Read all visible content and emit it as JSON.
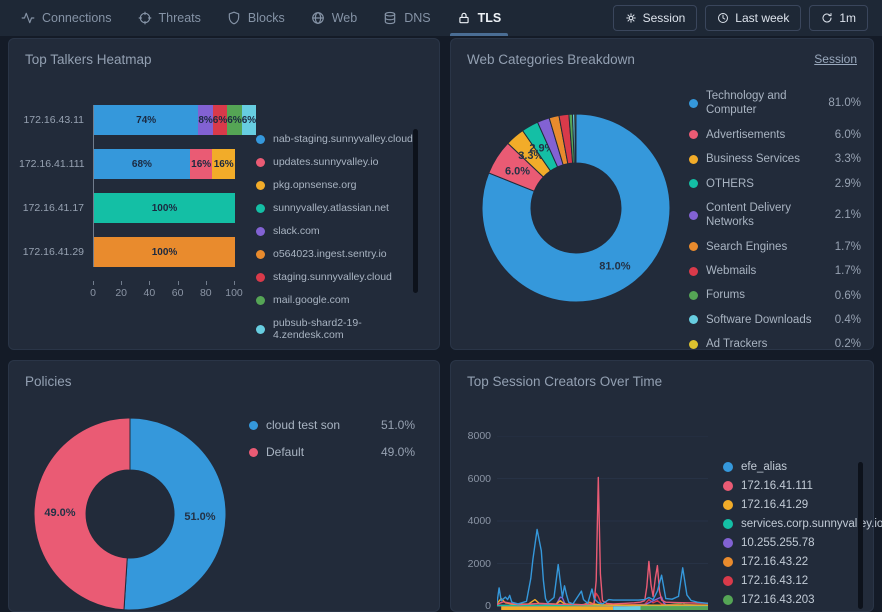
{
  "nav": {
    "tabs": [
      {
        "label": "Connections",
        "icon": "activity-icon"
      },
      {
        "label": "Threats",
        "icon": "crosshair-icon"
      },
      {
        "label": "Blocks",
        "icon": "shield-icon"
      },
      {
        "label": "Web",
        "icon": "globe-icon"
      },
      {
        "label": "DNS",
        "icon": "database-icon"
      },
      {
        "label": "TLS",
        "icon": "lock-icon"
      }
    ],
    "active_tab": "TLS",
    "controls": [
      {
        "label": "Session",
        "icon": "gear-icon"
      },
      {
        "label": "Last week",
        "icon": "clock-icon"
      },
      {
        "label": "1m",
        "icon": "refresh-icon"
      }
    ]
  },
  "panels": {
    "top_talkers": {
      "title": "Top Talkers Heatmap"
    },
    "web_categories": {
      "title": "Web Categories Breakdown",
      "link_label": "Session"
    },
    "policies": {
      "title": "Policies"
    },
    "session_creators": {
      "title": "Top Session Creators Over Time"
    }
  },
  "colors": {
    "page_bg": "#141b27",
    "panel_bg": "#222b3a",
    "accent_underline": "#4a6d94",
    "blue": "#3598db",
    "pink": "#ea5b74",
    "yellow": "#f2ac29",
    "teal": "#14bfa5",
    "purple": "#8262d3",
    "orange": "#e98b2d",
    "red": "#d93a4a",
    "green": "#55a555",
    "cyan": "#67cde0",
    "gold": "#dcc22f"
  },
  "chart_data": [
    {
      "id": "top_talkers",
      "type": "bar",
      "orientation": "horizontal",
      "stacked": true,
      "value_unit": "%",
      "categories": [
        "172.16.43.11",
        "172.16.41.111",
        "172.16.41.17",
        "172.16.41.29"
      ],
      "series": [
        {
          "name": "nab-staging.sunnyvalley.cloud",
          "color": "#3598db",
          "values": [
            74,
            68,
            0,
            0
          ]
        },
        {
          "name": "updates.sunnyvalley.io",
          "color": "#ea5b74",
          "values": [
            0,
            16,
            0,
            0
          ]
        },
        {
          "name": "pkg.opnsense.org",
          "color": "#f2ac29",
          "values": [
            0,
            16,
            0,
            0
          ]
        },
        {
          "name": "sunnyvalley.atlassian.net",
          "color": "#14bfa5",
          "values": [
            0,
            0,
            100,
            0
          ]
        },
        {
          "name": "slack.com",
          "color": "#8262d3",
          "values": [
            8,
            0,
            0,
            0
          ]
        },
        {
          "name": "o564023.ingest.sentry.io",
          "color": "#e98b2d",
          "values": [
            0,
            0,
            0,
            100
          ]
        },
        {
          "name": "staging.sunnyvalley.cloud",
          "color": "#d93a4a",
          "values": [
            6,
            0,
            0,
            0
          ]
        },
        {
          "name": "mail.google.com",
          "color": "#55a555",
          "values": [
            6,
            0,
            0,
            0
          ]
        },
        {
          "name": "pubsub-shard2-19-4.zendesk.com",
          "color": "#67cde0",
          "values": [
            6,
            0,
            0,
            0
          ]
        }
      ],
      "xticks": [
        0,
        20,
        40,
        60,
        80,
        100
      ],
      "xlim": [
        0,
        100
      ]
    },
    {
      "id": "web_categories",
      "type": "pie",
      "donut": true,
      "label_threshold": 2.5,
      "slices": [
        {
          "label": "Technology and Computer",
          "value": 81.0,
          "color": "#3598db"
        },
        {
          "label": "Advertisements",
          "value": 6.0,
          "color": "#ea5b74"
        },
        {
          "label": "Business Services",
          "value": 3.3,
          "color": "#f2ac29"
        },
        {
          "label": "OTHERS",
          "value": 2.9,
          "color": "#14bfa5"
        },
        {
          "label": "Content Delivery Networks",
          "value": 2.1,
          "color": "#8262d3"
        },
        {
          "label": "Search Engines",
          "value": 1.7,
          "color": "#e98b2d"
        },
        {
          "label": "Webmails",
          "value": 1.7,
          "color": "#d93a4a"
        },
        {
          "label": "Forums",
          "value": 0.6,
          "color": "#55a555"
        },
        {
          "label": "Software Downloads",
          "value": 0.4,
          "color": "#67cde0"
        },
        {
          "label": "Ad Trackers",
          "value": 0.2,
          "color": "#dcc22f"
        }
      ]
    },
    {
      "id": "policies",
      "type": "pie",
      "donut": true,
      "label_threshold": 0,
      "slices": [
        {
          "label": "cloud test son",
          "value": 51.0,
          "color": "#3598db"
        },
        {
          "label": "Default",
          "value": 49.0,
          "color": "#ea5b74"
        }
      ]
    },
    {
      "id": "session_creators",
      "type": "line",
      "ylim": [
        0,
        8000
      ],
      "yticks": [
        8000,
        6000,
        4000,
        2000,
        0
      ],
      "series": [
        {
          "name": "efe_alias",
          "color": "#3598db",
          "points": [
            [
              0,
              150
            ],
            [
              1,
              850
            ],
            [
              2,
              250
            ],
            [
              4,
              420
            ],
            [
              5,
              300
            ],
            [
              6,
              500
            ],
            [
              7,
              180
            ],
            [
              10,
              100
            ],
            [
              14,
              220
            ],
            [
              16,
              1300
            ],
            [
              17,
              2200
            ],
            [
              19,
              3600
            ],
            [
              21,
              2600
            ],
            [
              22,
              1200
            ],
            [
              23,
              350
            ],
            [
              24,
              150
            ],
            [
              27,
              400
            ],
            [
              29,
              1950
            ],
            [
              30,
              1150
            ],
            [
              31,
              420
            ],
            [
              32,
              950
            ],
            [
              33,
              520
            ],
            [
              34,
              180
            ],
            [
              36,
              100
            ],
            [
              40,
              700
            ],
            [
              41,
              300
            ],
            [
              43,
              120
            ],
            [
              45,
              800
            ],
            [
              46,
              350
            ],
            [
              48,
              150
            ],
            [
              50,
              100
            ],
            [
              53,
              300
            ],
            [
              55,
              280
            ],
            [
              58,
              280
            ],
            [
              61,
              280
            ],
            [
              64,
              280
            ],
            [
              67,
              280
            ],
            [
              70,
              300
            ],
            [
              72,
              400
            ],
            [
              74,
              300
            ],
            [
              76,
              700
            ],
            [
              78,
              1450
            ],
            [
              80,
              350
            ],
            [
              83,
              320
            ],
            [
              86,
              450
            ],
            [
              88,
              1800
            ],
            [
              90,
              520
            ],
            [
              92,
              260
            ],
            [
              95,
              180
            ],
            [
              100,
              120
            ]
          ]
        },
        {
          "name": "172.16.41.111",
          "color": "#ea5b74",
          "points": [
            [
              0,
              80
            ],
            [
              3,
              200
            ],
            [
              10,
              60
            ],
            [
              20,
              120
            ],
            [
              30,
              80
            ],
            [
              40,
              60
            ],
            [
              45,
              90
            ],
            [
              46,
              150
            ],
            [
              47,
              1200
            ],
            [
              48,
              6050
            ],
            [
              49,
              1500
            ],
            [
              50,
              250
            ],
            [
              52,
              120
            ],
            [
              55,
              100
            ],
            [
              60,
              120
            ],
            [
              65,
              150
            ],
            [
              68,
              180
            ],
            [
              70,
              250
            ],
            [
              71,
              900
            ],
            [
              72,
              2100
            ],
            [
              73,
              1000
            ],
            [
              74,
              450
            ],
            [
              75,
              1300
            ],
            [
              76,
              1900
            ],
            [
              77,
              700
            ],
            [
              78,
              280
            ],
            [
              80,
              180
            ],
            [
              85,
              160
            ],
            [
              90,
              150
            ],
            [
              95,
              140
            ],
            [
              100,
              130
            ]
          ]
        },
        {
          "name": "172.16.41.29",
          "color": "#f2ac29",
          "points": [
            [
              0,
              120
            ],
            [
              2,
              350
            ],
            [
              4,
              150
            ],
            [
              8,
              80
            ],
            [
              15,
              100
            ],
            [
              18,
              300
            ],
            [
              20,
              120
            ],
            [
              28,
              90
            ],
            [
              30,
              250
            ],
            [
              32,
              100
            ],
            [
              40,
              60
            ],
            [
              50,
              50
            ],
            [
              55,
              40
            ],
            [
              60,
              40
            ],
            [
              70,
              40
            ],
            [
              80,
              40
            ],
            [
              90,
              40
            ],
            [
              100,
              40
            ]
          ]
        },
        {
          "name": "services.corp.sunnyvalley.io",
          "color": "#14bfa5",
          "points": [
            [
              0,
              30
            ],
            [
              10,
              25
            ],
            [
              20,
              30
            ],
            [
              30,
              25
            ],
            [
              40,
              30
            ],
            [
              50,
              30
            ],
            [
              55,
              35
            ],
            [
              60,
              35
            ],
            [
              68,
              35
            ],
            [
              70,
              30
            ],
            [
              80,
              25
            ],
            [
              90,
              25
            ],
            [
              100,
              25
            ]
          ]
        },
        {
          "name": "10.255.255.78",
          "color": "#8262d3",
          "points": [
            [
              0,
              20
            ],
            [
              10,
              20
            ],
            [
              20,
              25
            ],
            [
              28,
              60
            ],
            [
              30,
              420
            ],
            [
              31,
              380
            ],
            [
              32,
              150
            ],
            [
              33,
              60
            ],
            [
              40,
              30
            ],
            [
              50,
              25
            ],
            [
              60,
              25
            ],
            [
              70,
              60
            ],
            [
              77,
              380
            ],
            [
              78,
              420
            ],
            [
              79,
              150
            ],
            [
              80,
              50
            ],
            [
              90,
              25
            ],
            [
              100,
              20
            ]
          ]
        },
        {
          "name": "172.16.43.22",
          "color": "#e98b2d",
          "points": [
            [
              0,
              25
            ],
            [
              10,
              20
            ],
            [
              20,
              25
            ],
            [
              30,
              30
            ],
            [
              40,
              25
            ],
            [
              44,
              180
            ],
            [
              45,
              120
            ],
            [
              50,
              30
            ],
            [
              60,
              25
            ],
            [
              70,
              30
            ],
            [
              80,
              25
            ],
            [
              90,
              20
            ],
            [
              100,
              20
            ]
          ]
        },
        {
          "name": "172.16.43.12",
          "color": "#d93a4a",
          "points": [
            [
              0,
              40
            ],
            [
              10,
              35
            ],
            [
              20,
              40
            ],
            [
              30,
              35
            ],
            [
              40,
              40
            ],
            [
              46,
              120
            ],
            [
              47,
              600
            ],
            [
              48,
              450
            ],
            [
              49,
              200
            ],
            [
              50,
              60
            ],
            [
              60,
              50
            ],
            [
              70,
              80
            ],
            [
              72,
              300
            ],
            [
              74,
              150
            ],
            [
              76,
              250
            ],
            [
              78,
              100
            ],
            [
              80,
              60
            ],
            [
              90,
              50
            ],
            [
              100,
              45
            ]
          ]
        },
        {
          "name": "172.16.43.203",
          "color": "#55a555",
          "points": [
            [
              0,
              15
            ],
            [
              20,
              15
            ],
            [
              40,
              15
            ],
            [
              60,
              20
            ],
            [
              68,
              40
            ],
            [
              80,
              40
            ],
            [
              87,
              120
            ],
            [
              88,
              150
            ],
            [
              89,
              80
            ],
            [
              95,
              40
            ],
            [
              100,
              40
            ]
          ]
        }
      ],
      "baseline_bars": [
        {
          "color": "#f2ac29",
          "x0": 2,
          "x1": 55
        },
        {
          "color": "#67cde0",
          "x0": 55,
          "x1": 68
        },
        {
          "color": "#55a555",
          "x0": 68,
          "x1": 100
        }
      ]
    }
  ]
}
